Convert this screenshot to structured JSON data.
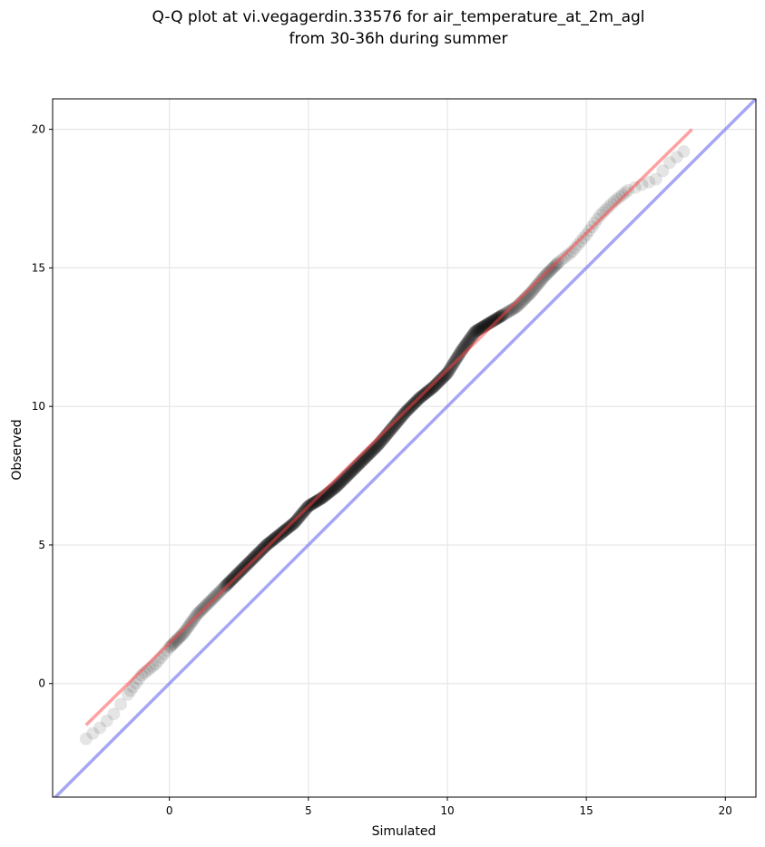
{
  "chart_data": {
    "type": "scatter",
    "title_line1": "Q-Q plot at vi.vegagerdin.33576 for air_temperature_at_2m_agl",
    "title_line2": "from 30-36h during summer",
    "xlabel": "Simulated",
    "ylabel": "Observed",
    "xlim": [
      -4.2,
      21.1
    ],
    "ylim": [
      -4.1,
      21.1
    ],
    "x_ticks": [
      0,
      5,
      10,
      15,
      20
    ],
    "y_ticks": [
      0,
      5,
      10,
      15,
      20
    ],
    "x_tick_labels": [
      "0",
      "5",
      "10",
      "15",
      "20"
    ],
    "y_tick_labels": [
      "0",
      "5",
      "10",
      "15",
      "20"
    ],
    "grid": true,
    "colors": {
      "points": "#000000",
      "fit_line": "#ff4444",
      "identity_line": "#6a6aee",
      "grid": "#e6e6e6"
    },
    "quantile_path": [
      [
        -3.0,
        -2.0
      ],
      [
        -2.5,
        -1.6
      ],
      [
        -2.0,
        -1.1
      ],
      [
        -1.5,
        -0.4
      ],
      [
        -1.0,
        0.3
      ],
      [
        -0.5,
        0.7
      ],
      [
        0.0,
        1.3
      ],
      [
        0.5,
        1.8
      ],
      [
        1.0,
        2.5
      ],
      [
        1.5,
        3.0
      ],
      [
        2.0,
        3.5
      ],
      [
        2.5,
        4.0
      ],
      [
        3.0,
        4.5
      ],
      [
        3.5,
        5.0
      ],
      [
        4.0,
        5.4
      ],
      [
        4.5,
        5.8
      ],
      [
        5.0,
        6.4
      ],
      [
        5.5,
        6.7
      ],
      [
        6.0,
        7.1
      ],
      [
        6.5,
        7.6
      ],
      [
        7.0,
        8.1
      ],
      [
        7.5,
        8.6
      ],
      [
        8.0,
        9.2
      ],
      [
        8.5,
        9.8
      ],
      [
        9.0,
        10.3
      ],
      [
        9.5,
        10.7
      ],
      [
        10.0,
        11.2
      ],
      [
        10.5,
        12.0
      ],
      [
        11.0,
        12.7
      ],
      [
        11.5,
        13.0
      ],
      [
        12.0,
        13.3
      ],
      [
        12.5,
        13.6
      ],
      [
        13.0,
        14.1
      ],
      [
        13.5,
        14.7
      ],
      [
        14.0,
        15.2
      ],
      [
        14.5,
        15.6
      ],
      [
        15.0,
        16.2
      ],
      [
        15.5,
        16.9
      ],
      [
        16.0,
        17.4
      ],
      [
        16.5,
        17.8
      ],
      [
        17.0,
        18.0
      ],
      [
        17.5,
        18.2
      ],
      [
        18.0,
        18.8
      ],
      [
        18.5,
        19.2
      ]
    ],
    "fit_line": {
      "x": [
        -3.0,
        18.8
      ],
      "y": [
        -1.5,
        20.0
      ]
    },
    "identity_line": {
      "x": [
        -4.2,
        21.1
      ],
      "y": [
        -4.2,
        21.1
      ]
    }
  }
}
